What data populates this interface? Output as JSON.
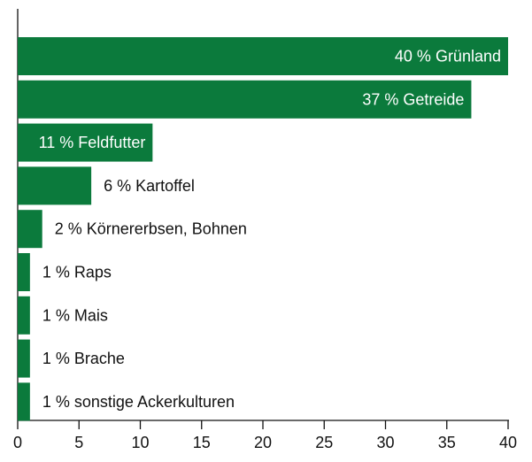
{
  "chart_data": {
    "type": "bar",
    "orientation": "horizontal",
    "categories": [
      "Grünland",
      "Getreide",
      "Feldfutter",
      "Kartoffel",
      "Körnererbsen, Bohnen",
      "Raps",
      "Mais",
      "Brache",
      "sonstige Ackerkulturen"
    ],
    "values": [
      40,
      37,
      11,
      6,
      2,
      1,
      1,
      1,
      1
    ],
    "value_labels": [
      "40 %",
      "37 %",
      "11 %",
      "6 %",
      "2 %",
      "1 %",
      "1 %",
      "1 %",
      "1 %"
    ],
    "color": "#0b7a3c",
    "xlim": [
      0,
      40
    ],
    "xticks": [
      0,
      5,
      10,
      15,
      20,
      25,
      30,
      35,
      40
    ]
  }
}
